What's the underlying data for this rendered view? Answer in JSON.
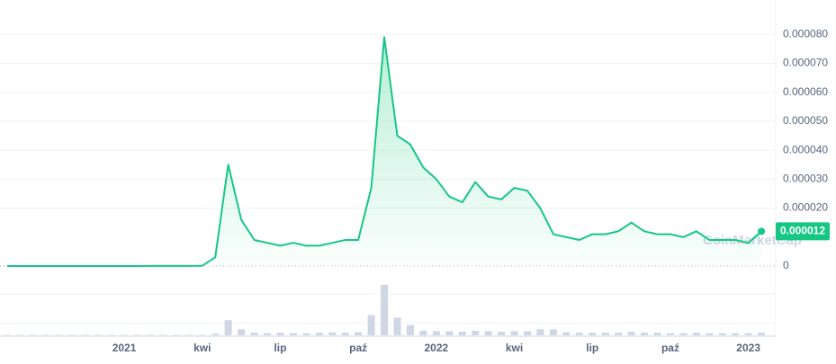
{
  "chart_data": {
    "type": "area",
    "watermark": "CoinMarketCap",
    "price_badge": "0.000012",
    "categories": [
      null,
      null,
      null,
      null,
      null,
      null,
      null,
      null,
      null,
      "2021",
      null,
      null,
      null,
      null,
      null,
      "kwi",
      null,
      null,
      null,
      null,
      null,
      "lip",
      null,
      null,
      null,
      null,
      null,
      "paź",
      null,
      null,
      null,
      null,
      null,
      "2022",
      null,
      null,
      null,
      null,
      null,
      "kwi",
      null,
      null,
      null,
      null,
      null,
      "lip",
      null,
      null,
      null,
      null,
      null,
      "paź",
      null,
      null,
      null,
      null,
      null,
      "2023",
      null
    ],
    "series": [
      {
        "color": "#16c784",
        "values": [
          1e-08,
          1e-08,
          1e-08,
          1e-08,
          1e-08,
          1e-08,
          1e-08,
          1e-08,
          1e-08,
          1e-08,
          1e-08,
          2e-08,
          2e-08,
          2e-08,
          2e-08,
          1e-07,
          3e-06,
          3.5e-05,
          1.6e-05,
          9e-06,
          8e-06,
          7e-06,
          8e-06,
          7e-06,
          7e-06,
          8e-06,
          9e-06,
          9e-06,
          2.7e-05,
          7.9e-05,
          4.5e-05,
          4.2e-05,
          3.4e-05,
          3e-05,
          2.4e-05,
          2.2e-05,
          2.9e-05,
          2.4e-05,
          2.3e-05,
          2.7e-05,
          2.6e-05,
          2e-05,
          1.1e-05,
          1e-05,
          9e-06,
          1.1e-05,
          1.1e-05,
          1.2e-05,
          1.5e-05,
          1.2e-05,
          1.1e-05,
          1.1e-05,
          1e-05,
          1.2e-05,
          9e-06,
          9e-06,
          9e-06,
          8e-06,
          1.2e-05
        ]
      },
      {
        "color": "#cfd6e4",
        "values": [
          1,
          1,
          1,
          1,
          1,
          1,
          1,
          1,
          1,
          1,
          1,
          1,
          1,
          1,
          1,
          1,
          3,
          30,
          12,
          5,
          4,
          5,
          4,
          4,
          5,
          6,
          5,
          6,
          40,
          100,
          35,
          20,
          9,
          8,
          8,
          7,
          9,
          8,
          7,
          8,
          8,
          12,
          12,
          6,
          5,
          5,
          5,
          5,
          7,
          5,
          5,
          4,
          4,
          5,
          4,
          4,
          4,
          4,
          5
        ]
      }
    ],
    "volume_ylim": [
      0,
      100
    ],
    "ylim": [
      0,
      9e-05
    ],
    "yticks": [
      {
        "value": 0,
        "label": "0"
      },
      {
        "value": 2e-05,
        "label": "0.000020"
      },
      {
        "value": 3e-05,
        "label": "0.000030"
      },
      {
        "value": 4e-05,
        "label": "0.000040"
      },
      {
        "value": 5e-05,
        "label": "0.000050"
      },
      {
        "value": 6e-05,
        "label": "0.000060"
      },
      {
        "value": 7e-05,
        "label": "0.000070"
      },
      {
        "value": 8e-05,
        "label": "0.000080"
      }
    ],
    "grid": true
  }
}
